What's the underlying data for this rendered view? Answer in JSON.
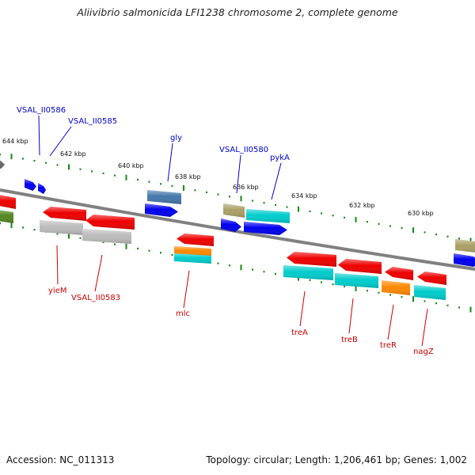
{
  "title": "Aliivibrio salmonicida LFI1238 chromosome 2, complete genome",
  "footer": {
    "accession": "Accession: NC_011313",
    "stats": "Topology: circular; Length: 1,206,461 bp; Genes: 1,002"
  },
  "colors": {
    "backbone": "#808080",
    "tick": "#138a13",
    "label_above": "#0000cc",
    "label_below": "#cc0000"
  },
  "kbp_ticks": [
    {
      "text": "644 kbp"
    },
    {
      "text": "642 kbp"
    },
    {
      "text": "640 kbp"
    },
    {
      "text": "638 kbp"
    },
    {
      "text": "636 kbp"
    },
    {
      "text": "634 kbp"
    },
    {
      "text": "632 kbp"
    },
    {
      "text": "630 kbp"
    }
  ],
  "gene_labels": [
    {
      "text": "VSAL_II0586",
      "side": "above"
    },
    {
      "text": "VSAL_II0585",
      "side": "above"
    },
    {
      "text": "gly",
      "side": "above"
    },
    {
      "text": "VSAL_II0580",
      "side": "above"
    },
    {
      "text": "pykA",
      "side": "above"
    },
    {
      "text": "yieM",
      "side": "below"
    },
    {
      "text": "VSAL_II0583",
      "side": "below"
    },
    {
      "text": "mlc",
      "side": "below"
    },
    {
      "text": "treA",
      "side": "below"
    },
    {
      "text": "treB",
      "side": "below"
    },
    {
      "text": "treR",
      "side": "below"
    },
    {
      "text": "nagZ",
      "side": "below"
    }
  ],
  "features": [
    {
      "name": "feature-gray-left-edge",
      "color": "#666666"
    },
    {
      "name": "feature-blue-small-1",
      "color": "#0000ee"
    },
    {
      "name": "feature-blue-small-2",
      "color": "#0000ee"
    },
    {
      "name": "feature-steelblue-gly",
      "color": "#4477aa"
    },
    {
      "name": "feature-blue-gly",
      "color": "#0000ee"
    },
    {
      "name": "feature-olive-0580",
      "color": "#aaa066"
    },
    {
      "name": "feature-cyan-pyka",
      "color": "#00cccc"
    },
    {
      "name": "feature-blue-0580",
      "color": "#0000ee"
    },
    {
      "name": "feature-blue-pyka",
      "color": "#0000ee"
    },
    {
      "name": "feature-olive-right-edge",
      "color": "#aaa066"
    },
    {
      "name": "feature-blue-right-edge",
      "color": "#0000ee"
    },
    {
      "name": "feature-red-left-edge",
      "color": "#ee0000"
    },
    {
      "name": "feature-green-left-edge",
      "color": "#558822"
    },
    {
      "name": "feature-red-yiem",
      "color": "#ee0000"
    },
    {
      "name": "feature-red-0583",
      "color": "#ee0000"
    },
    {
      "name": "feature-gray-yiem",
      "color": "#bbbbbb"
    },
    {
      "name": "feature-gray-0583",
      "color": "#bbbbbb"
    },
    {
      "name": "feature-red-mlc",
      "color": "#ee0000"
    },
    {
      "name": "feature-orange-mlc",
      "color": "#ff8800"
    },
    {
      "name": "feature-cyan-mlc",
      "color": "#00cccc"
    },
    {
      "name": "feature-red-trea",
      "color": "#ee0000"
    },
    {
      "name": "feature-red-treb",
      "color": "#ee0000"
    },
    {
      "name": "feature-red-trer",
      "color": "#ee0000"
    },
    {
      "name": "feature-red-nagz",
      "color": "#ee0000"
    },
    {
      "name": "feature-cyan-trea",
      "color": "#00cccc"
    },
    {
      "name": "feature-cyan-treb",
      "color": "#00cccc"
    },
    {
      "name": "feature-orange-trer",
      "color": "#ff8800"
    },
    {
      "name": "feature-cyan-nagz",
      "color": "#00cccc"
    }
  ]
}
